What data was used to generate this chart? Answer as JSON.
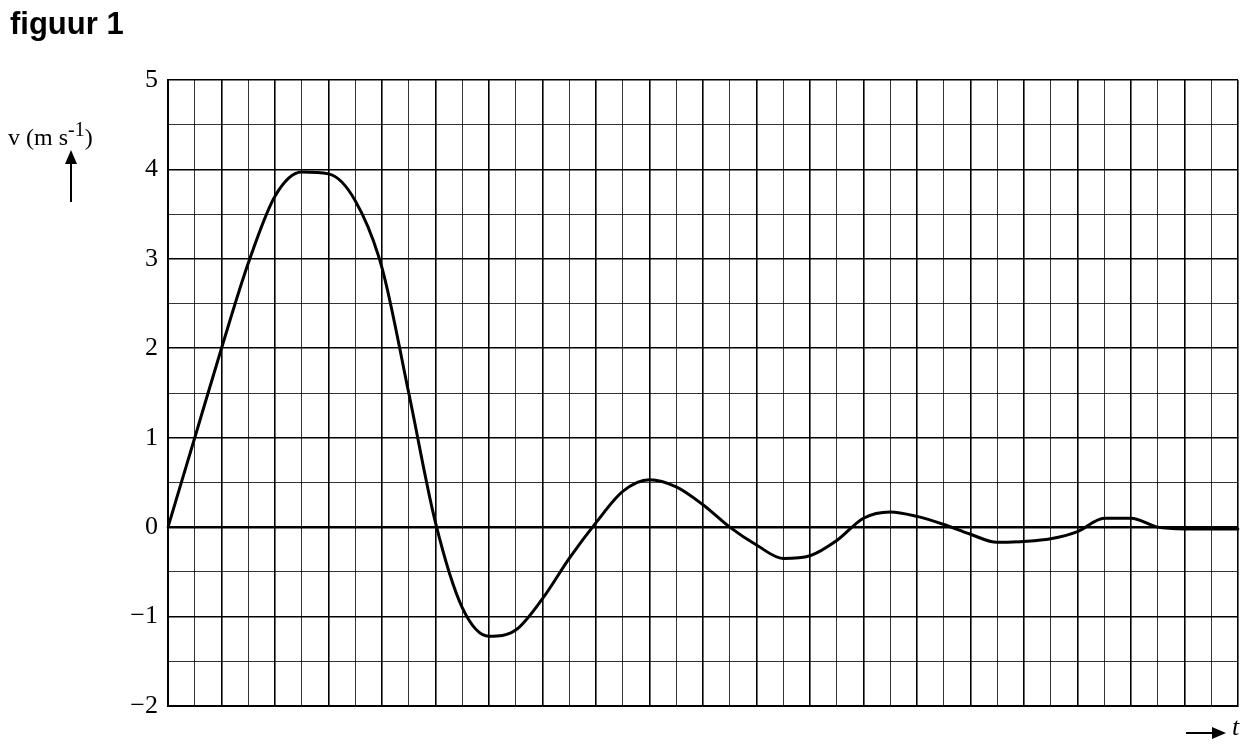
{
  "chart_data": {
    "type": "line",
    "title": "figuur 1",
    "xlabel": "t",
    "ylabel": "v (m s$^{-1}$)",
    "categories": [
      null,
      null,
      null,
      null,
      null,
      null,
      null,
      null,
      null,
      null,
      null,
      null,
      null,
      null,
      null,
      null,
      null,
      null,
      null,
      null,
      null,
      null,
      null,
      null,
      null,
      null,
      null,
      null,
      null,
      null,
      null,
      null,
      null,
      null,
      null,
      null,
      null,
      null,
      null,
      null,
      null
    ],
    "series": [
      {
        "color": "#000000",
        "values": [
          0,
          1.0,
          2.0,
          2.95,
          3.7,
          3.97,
          3.95,
          3.65,
          2.9,
          1.5,
          0.05,
          -0.9,
          -1.22,
          -1.15,
          -0.8,
          -0.35,
          0.05,
          0.4,
          0.53,
          0.45,
          0.25,
          0.0,
          -0.2,
          -0.35,
          -0.32,
          -0.15,
          0.1,
          0.17,
          0.12,
          0.03,
          -0.08,
          -0.17,
          -0.16,
          -0.13,
          -0.05,
          0.1,
          0.1,
          0.0,
          -0.02,
          -0.02,
          -0.02
        ]
      }
    ],
    "ylim": [
      -2,
      5
    ],
    "yticks": [
      -2,
      {
        "value": -1.5,
        "label": null
      },
      -1,
      {
        "value": -0.5,
        "label": null
      },
      0,
      {
        "value": 0.5,
        "label": null
      },
      1,
      {
        "value": 1.5,
        "label": null
      },
      2,
      {
        "value": 2.5,
        "label": null
      },
      3,
      {
        "value": 3.5,
        "label": null
      },
      4,
      {
        "value": 4.5,
        "label": null
      },
      5
    ],
    "grid": true,
    "tick_labels": "y",
    "line_style": "solid"
  }
}
